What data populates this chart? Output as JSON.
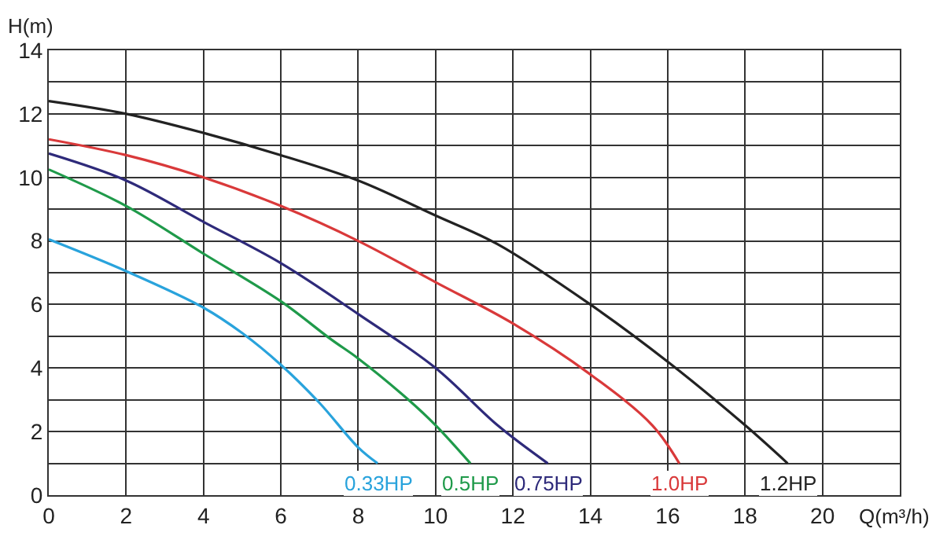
{
  "chart_data": {
    "type": "line",
    "xlabel": "Q(m³/h)",
    "ylabel": "H(m)",
    "xlim": [
      0,
      22
    ],
    "xticks": [
      0,
      2,
      4,
      6,
      8,
      10,
      12,
      14,
      16,
      18,
      20,
      {
        "value": 22,
        "label": null
      }
    ],
    "ylim": [
      0,
      14
    ],
    "yticks": [
      0,
      {
        "value": 1,
        "label": null
      },
      2,
      {
        "value": 3,
        "label": null
      },
      4,
      {
        "value": 5,
        "label": null
      },
      6,
      {
        "value": 7,
        "label": null
      },
      8,
      {
        "value": 9,
        "label": null
      },
      10,
      {
        "value": 11,
        "label": null
      },
      12,
      {
        "value": 13,
        "label": null
      },
      14
    ],
    "grid": true,
    "legend": false,
    "marker": "none",
    "line_style": "solid",
    "series": [
      {
        "name": "0.33HP",
        "color": "#29a3dc",
        "x": [
          0,
          2,
          4,
          5,
          6,
          7,
          8,
          8.5
        ],
        "values": [
          8.05,
          7.05,
          5.9,
          5.1,
          4.1,
          2.9,
          1.5,
          1.0
        ]
      },
      {
        "name": "0.5HP",
        "color": "#1f9a4a",
        "x": [
          0,
          2,
          4,
          6,
          7.3,
          8,
          9.3,
          10,
          10.9
        ],
        "values": [
          10.25,
          9.1,
          7.6,
          6.1,
          4.9,
          4.3,
          3.0,
          2.2,
          1.0
        ]
      },
      {
        "name": "0.75HP",
        "color": "#2e2a7a",
        "x": [
          0,
          2,
          4,
          6,
          8,
          10,
          11.6,
          12.9
        ],
        "values": [
          10.75,
          9.9,
          8.6,
          7.3,
          5.7,
          4.0,
          2.2,
          1.0
        ]
      },
      {
        "name": "1.0HP",
        "color": "#d9393a",
        "x": [
          0,
          2,
          4,
          6,
          8,
          10,
          12,
          14,
          15.6,
          16.3
        ],
        "values": [
          11.2,
          10.7,
          10.0,
          9.1,
          8.0,
          6.7,
          5.4,
          3.8,
          2.2,
          1.0
        ]
      },
      {
        "name": "1.2HP",
        "color": "#222222",
        "x": [
          0,
          2,
          4,
          6,
          8,
          10,
          11.6,
          14,
          16,
          18,
          19.1
        ],
        "values": [
          12.4,
          12.0,
          11.4,
          10.7,
          9.9,
          8.8,
          7.9,
          6.0,
          4.2,
          2.2,
          1.0
        ]
      }
    ]
  }
}
